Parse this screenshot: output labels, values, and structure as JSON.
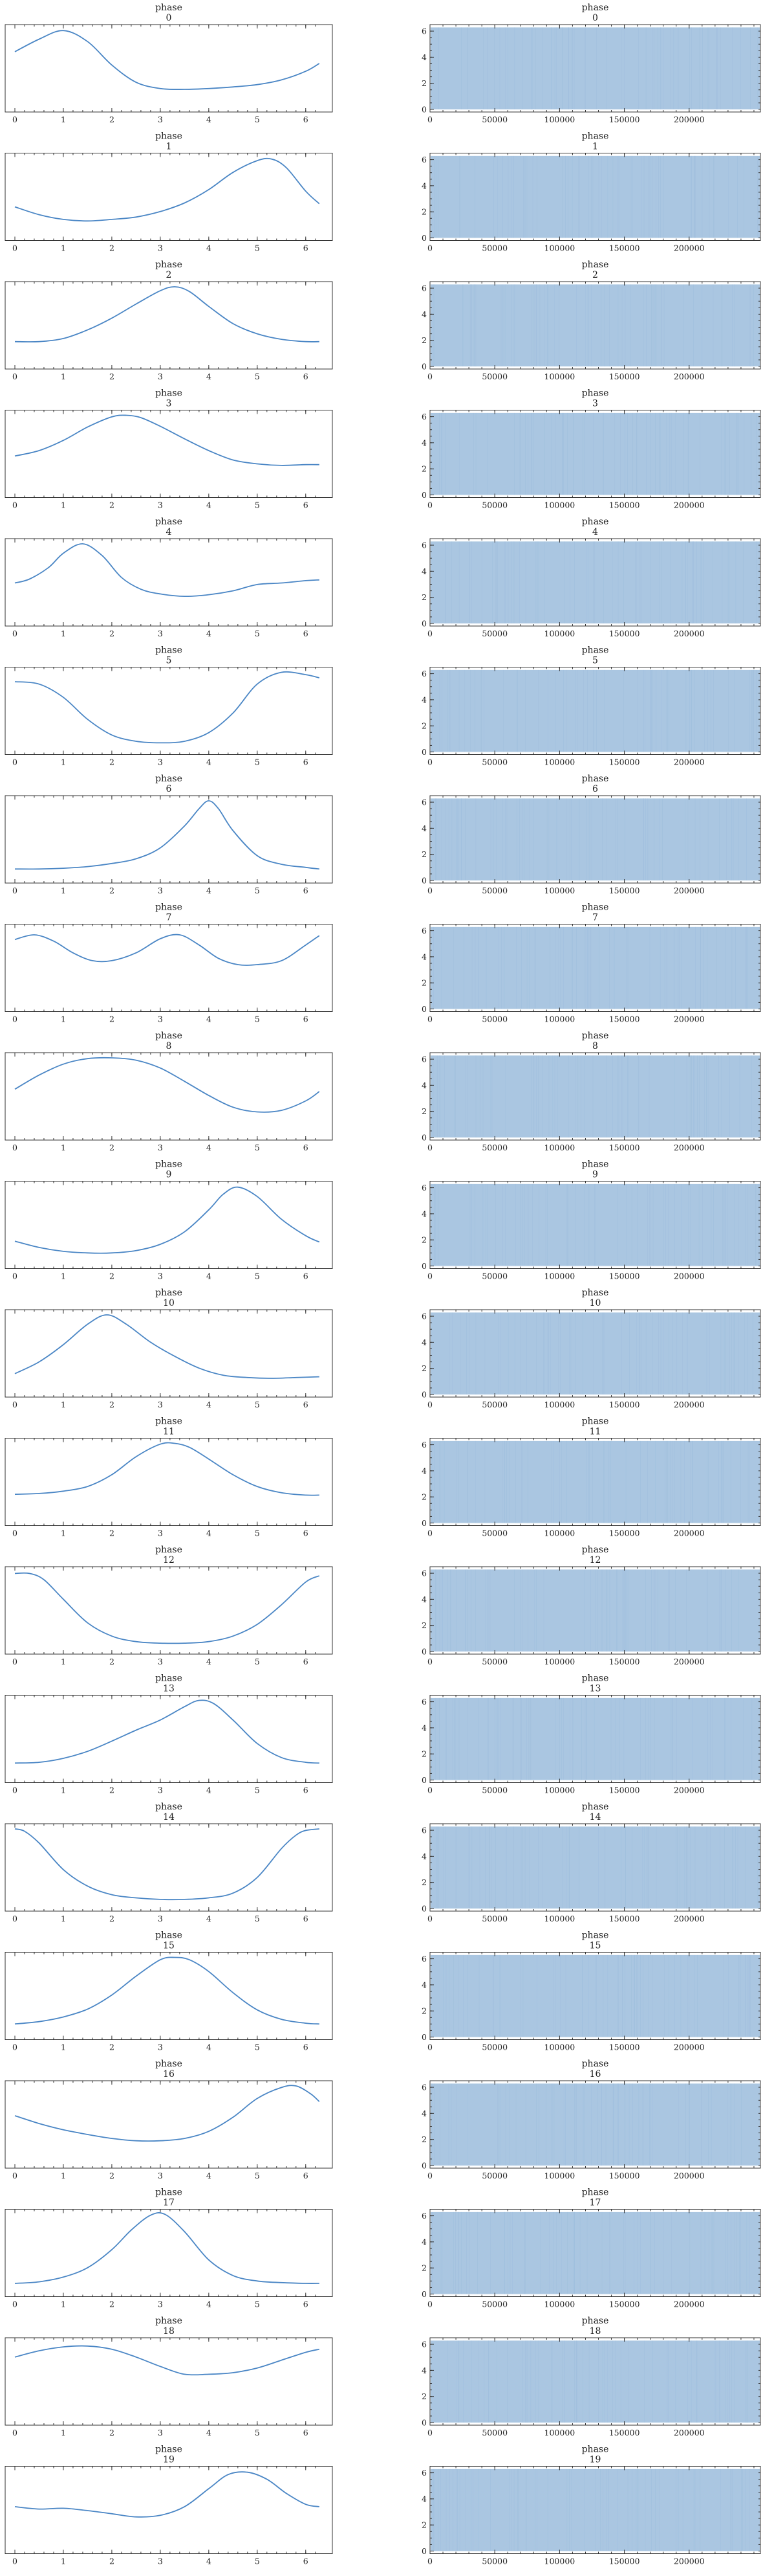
{
  "chart_data": {
    "type": "line",
    "layout": "trace-plot",
    "rows": [
      {
        "title_var": "phase",
        "title_index": "0",
        "kde": {
          "x": [
            0,
            0.5,
            1,
            1.5,
            2,
            2.5,
            3,
            3.5,
            4,
            4.5,
            5,
            5.5,
            6,
            6.28
          ],
          "y": [
            0.72,
            0.88,
            0.99,
            0.85,
            0.55,
            0.33,
            0.25,
            0.24,
            0.25,
            0.27,
            0.3,
            0.36,
            0.47,
            0.57
          ]
        }
      },
      {
        "title_var": "phase",
        "title_index": "1",
        "kde": {
          "x": [
            0,
            0.5,
            1,
            1.5,
            2,
            2.5,
            3,
            3.5,
            4,
            4.5,
            5,
            5.3,
            5.6,
            6,
            6.28
          ],
          "y": [
            0.38,
            0.28,
            0.22,
            0.2,
            0.22,
            0.25,
            0.32,
            0.43,
            0.6,
            0.82,
            0.97,
            0.99,
            0.88,
            0.58,
            0.42
          ]
        }
      },
      {
        "title_var": "phase",
        "title_index": "2",
        "kde": {
          "x": [
            0,
            0.5,
            1,
            1.5,
            2,
            2.5,
            3,
            3.3,
            3.6,
            4,
            4.5,
            5,
            5.5,
            6,
            6.28
          ],
          "y": [
            0.3,
            0.3,
            0.34,
            0.45,
            0.6,
            0.78,
            0.95,
            1.0,
            0.94,
            0.75,
            0.53,
            0.4,
            0.33,
            0.3,
            0.3
          ]
        }
      },
      {
        "title_var": "phase",
        "title_index": "3",
        "kde": {
          "x": [
            0,
            0.5,
            1,
            1.5,
            2,
            2.3,
            2.6,
            3,
            3.5,
            4,
            4.5,
            5,
            5.5,
            6,
            6.28
          ],
          "y": [
            0.48,
            0.55,
            0.68,
            0.85,
            0.98,
            1.0,
            0.97,
            0.86,
            0.7,
            0.55,
            0.43,
            0.38,
            0.36,
            0.37,
            0.37
          ]
        }
      },
      {
        "title_var": "phase",
        "title_index": "4",
        "kde": {
          "x": [
            0,
            0.3,
            0.7,
            1,
            1.4,
            1.8,
            2.2,
            2.6,
            3,
            3.5,
            4,
            4.5,
            5,
            5.5,
            6,
            6.28
          ],
          "y": [
            0.5,
            0.55,
            0.7,
            0.88,
            1.0,
            0.85,
            0.57,
            0.42,
            0.36,
            0.33,
            0.35,
            0.4,
            0.48,
            0.5,
            0.53,
            0.54
          ]
        }
      },
      {
        "title_var": "phase",
        "title_index": "5",
        "kde": {
          "x": [
            0,
            0.5,
            1,
            1.5,
            2,
            2.5,
            3,
            3.5,
            4,
            4.5,
            5,
            5.5,
            6,
            6.28
          ],
          "y": [
            0.88,
            0.85,
            0.68,
            0.4,
            0.2,
            0.12,
            0.1,
            0.12,
            0.23,
            0.48,
            0.85,
            1.0,
            0.97,
            0.93
          ]
        }
      },
      {
        "title_var": "phase",
        "title_index": "6",
        "kde": {
          "x": [
            0,
            0.5,
            1,
            1.5,
            2,
            2.5,
            3,
            3.5,
            3.8,
            4,
            4.2,
            4.5,
            5,
            5.5,
            6,
            6.28
          ],
          "y": [
            0.13,
            0.13,
            0.14,
            0.16,
            0.2,
            0.26,
            0.4,
            0.68,
            0.9,
            1.0,
            0.9,
            0.62,
            0.3,
            0.19,
            0.15,
            0.13
          ]
        }
      },
      {
        "title_var": "phase",
        "title_index": "7",
        "kde": {
          "x": [
            0,
            0.4,
            0.8,
            1.2,
            1.6,
            2,
            2.5,
            3,
            3.4,
            3.8,
            4.2,
            4.6,
            5,
            5.5,
            6,
            6.28
          ],
          "y": [
            0.87,
            0.93,
            0.85,
            0.7,
            0.6,
            0.6,
            0.7,
            0.88,
            0.93,
            0.8,
            0.63,
            0.55,
            0.55,
            0.6,
            0.8,
            0.92
          ]
        }
      },
      {
        "title_var": "phase",
        "title_index": "8",
        "kde": {
          "x": [
            0,
            0.5,
            1,
            1.5,
            2,
            2.5,
            3,
            3.5,
            4,
            4.5,
            5,
            5.5,
            6,
            6.28
          ],
          "y": [
            0.6,
            0.78,
            0.92,
            0.99,
            1.0,
            0.97,
            0.87,
            0.7,
            0.52,
            0.37,
            0.31,
            0.33,
            0.45,
            0.57
          ]
        }
      },
      {
        "title_var": "phase",
        "title_index": "9",
        "kde": {
          "x": [
            0,
            0.5,
            1,
            1.5,
            2,
            2.5,
            3,
            3.5,
            4,
            4.3,
            4.6,
            5,
            5.5,
            6,
            6.28
          ],
          "y": [
            0.3,
            0.22,
            0.17,
            0.15,
            0.15,
            0.18,
            0.26,
            0.42,
            0.7,
            0.9,
            0.99,
            0.87,
            0.58,
            0.37,
            0.29
          ]
        }
      },
      {
        "title_var": "phase",
        "title_index": "10",
        "kde": {
          "x": [
            0,
            0.5,
            1,
            1.5,
            1.9,
            2.3,
            2.8,
            3.3,
            3.8,
            4.3,
            4.8,
            5.3,
            5.8,
            6.28
          ],
          "y": [
            0.25,
            0.4,
            0.62,
            0.88,
            1.0,
            0.88,
            0.65,
            0.47,
            0.32,
            0.23,
            0.2,
            0.19,
            0.2,
            0.21
          ]
        }
      },
      {
        "title_var": "phase",
        "title_index": "11",
        "kde": {
          "x": [
            0,
            0.5,
            1,
            1.5,
            2,
            2.5,
            3,
            3.3,
            3.6,
            4,
            4.5,
            5,
            5.5,
            6,
            6.28
          ],
          "y": [
            0.35,
            0.36,
            0.39,
            0.45,
            0.6,
            0.83,
            0.99,
            1.0,
            0.95,
            0.8,
            0.6,
            0.45,
            0.37,
            0.34,
            0.34
          ]
        }
      },
      {
        "title_var": "phase",
        "title_index": "12",
        "kde": {
          "x": [
            0,
            0.3,
            0.6,
            1,
            1.5,
            2,
            2.5,
            3,
            3.5,
            4,
            4.5,
            5,
            5.5,
            6,
            6.28
          ],
          "y": [
            0.98,
            0.98,
            0.9,
            0.65,
            0.35,
            0.18,
            0.11,
            0.09,
            0.09,
            0.11,
            0.18,
            0.33,
            0.58,
            0.87,
            0.95
          ]
        }
      },
      {
        "title_var": "phase",
        "title_index": "13",
        "kde": {
          "x": [
            0,
            0.5,
            1,
            1.5,
            2,
            2.5,
            3,
            3.5,
            3.8,
            4.1,
            4.5,
            5,
            5.5,
            6,
            6.28
          ],
          "y": [
            0.2,
            0.21,
            0.26,
            0.35,
            0.48,
            0.62,
            0.75,
            0.92,
            1.0,
            0.96,
            0.75,
            0.45,
            0.27,
            0.21,
            0.2
          ]
        }
      },
      {
        "title_var": "phase",
        "title_index": "14",
        "kde": {
          "x": [
            0,
            0.2,
            0.5,
            1,
            1.5,
            2,
            2.5,
            3,
            3.5,
            4,
            4.5,
            5,
            5.5,
            5.8,
            6,
            6.28
          ],
          "y": [
            1.0,
            0.97,
            0.82,
            0.48,
            0.27,
            0.16,
            0.12,
            0.1,
            0.1,
            0.12,
            0.18,
            0.38,
            0.75,
            0.92,
            0.98,
            1.0
          ]
        }
      },
      {
        "title_var": "phase",
        "title_index": "15",
        "kde": {
          "x": [
            0,
            0.5,
            1,
            1.5,
            2,
            2.5,
            3,
            3.3,
            3.6,
            4,
            4.5,
            5,
            5.5,
            6,
            6.28
          ],
          "y": [
            0.15,
            0.18,
            0.24,
            0.34,
            0.52,
            0.76,
            0.97,
            1.0,
            0.97,
            0.82,
            0.55,
            0.33,
            0.21,
            0.16,
            0.15
          ]
        }
      },
      {
        "title_var": "phase",
        "title_index": "16",
        "kde": {
          "x": [
            0,
            0.5,
            1,
            1.5,
            2,
            2.5,
            3,
            3.5,
            4,
            4.5,
            5,
            5.5,
            5.8,
            6.1,
            6.28
          ],
          "y": [
            0.62,
            0.52,
            0.44,
            0.38,
            0.33,
            0.3,
            0.3,
            0.33,
            0.42,
            0.6,
            0.84,
            0.98,
            1.0,
            0.9,
            0.8
          ]
        }
      },
      {
        "title_var": "phase",
        "title_index": "17",
        "kde": {
          "x": [
            0,
            0.5,
            1,
            1.5,
            2,
            2.4,
            2.8,
            3.1,
            3.5,
            4,
            4.5,
            5,
            5.5,
            6,
            6.28
          ],
          "y": [
            0.12,
            0.14,
            0.2,
            0.32,
            0.55,
            0.8,
            0.99,
            1.0,
            0.78,
            0.42,
            0.22,
            0.15,
            0.13,
            0.12,
            0.12
          ]
        }
      },
      {
        "title_var": "phase",
        "title_index": "18",
        "kde": {
          "x": [
            0,
            0.5,
            1,
            1.5,
            2,
            2.5,
            3,
            3.5,
            4,
            4.5,
            5,
            5.5,
            6,
            6.28
          ],
          "y": [
            0.82,
            0.9,
            0.95,
            0.96,
            0.92,
            0.82,
            0.7,
            0.6,
            0.6,
            0.62,
            0.68,
            0.78,
            0.88,
            0.92
          ]
        }
      },
      {
        "title_var": "phase",
        "title_index": "19",
        "kde": {
          "x": [
            0,
            0.5,
            1,
            1.5,
            2,
            2.5,
            3,
            3.5,
            4,
            4.4,
            4.8,
            5.2,
            5.6,
            6,
            6.28
          ],
          "y": [
            0.55,
            0.52,
            0.53,
            0.5,
            0.46,
            0.42,
            0.44,
            0.55,
            0.78,
            0.96,
            0.99,
            0.9,
            0.72,
            0.58,
            0.55
          ]
        }
      }
    ],
    "left_axis": {
      "xlim": [
        -0.2,
        6.55
      ],
      "xticks": [
        "0",
        "1",
        "2",
        "3",
        "4",
        "5",
        "6"
      ],
      "tick_values": [
        0,
        1,
        2,
        3,
        4,
        5,
        6
      ]
    },
    "right_axis": {
      "xlim": [
        0,
        255000
      ],
      "xticks": [
        "0",
        "50000",
        "100000",
        "150000",
        "200000"
      ],
      "tick_values": [
        0,
        50000,
        100000,
        150000,
        200000
      ],
      "ylim": [
        -0.2,
        6.5
      ],
      "yticks": [
        "0",
        "2",
        "4",
        "6"
      ],
      "ytick_values": [
        0,
        2,
        4,
        6
      ]
    },
    "colors": {
      "line": "#4a86c5",
      "trace_fill": "#aac6e1",
      "frame": "#333333"
    },
    "grid": false
  }
}
